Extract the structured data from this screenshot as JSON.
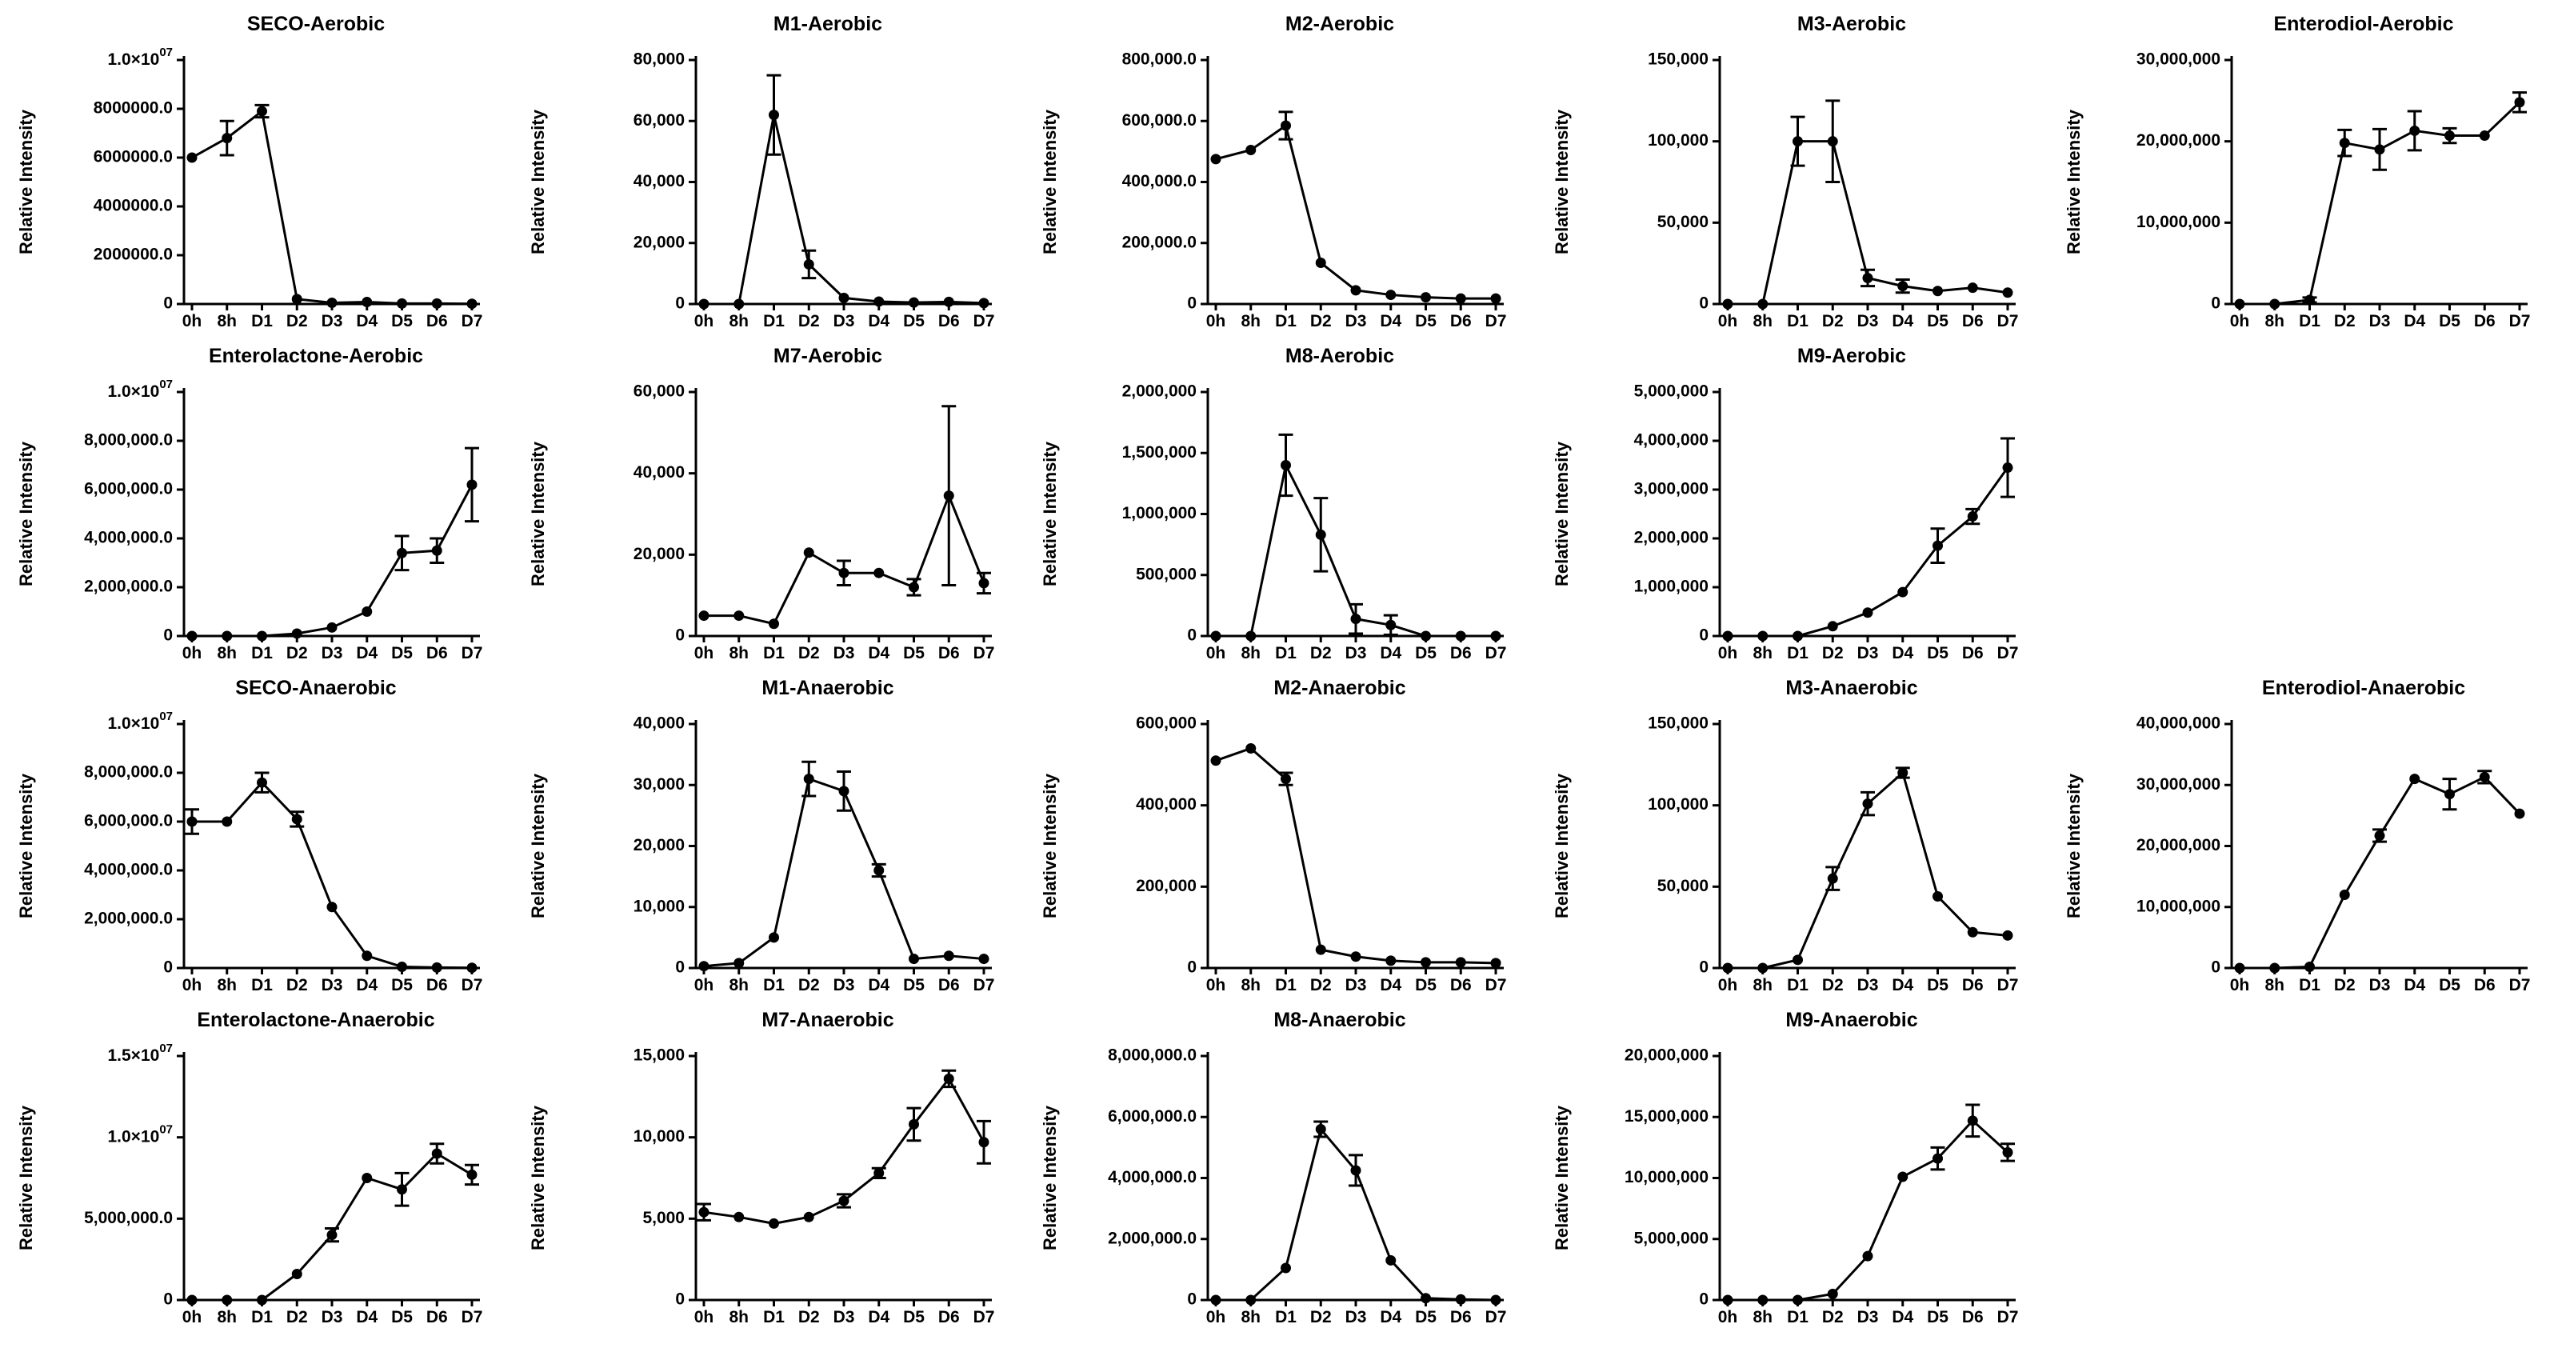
{
  "shared": {
    "categories": [
      "0h",
      "8h",
      "D1",
      "D2",
      "D3",
      "D4",
      "D5",
      "D6",
      "D7"
    ],
    "ylabel": "Relative Intensity"
  },
  "chart_data": [
    {
      "type": "line",
      "title": "SECO-Aerobic",
      "ylim": [
        0,
        10000000
      ],
      "yticks": [
        "0",
        "2000000.0",
        "4000000.0",
        "6000000.0",
        "8000000.0",
        "1.0×10^07"
      ],
      "values": [
        6000000,
        6800000,
        7900000,
        200000,
        50000,
        80000,
        20000,
        20000,
        10000
      ],
      "errors": [
        0,
        700000,
        250000,
        0,
        0,
        0,
        0,
        0,
        0
      ]
    },
    {
      "type": "line",
      "title": "M1-Aerobic",
      "ylim": [
        0,
        80000
      ],
      "yticks": [
        "0",
        "20,000",
        "40,000",
        "60,000",
        "80,000"
      ],
      "values": [
        0,
        0,
        62000,
        13000,
        2000,
        800,
        500,
        700,
        300
      ],
      "errors": [
        0,
        0,
        13000,
        4500,
        0,
        0,
        0,
        0,
        0
      ]
    },
    {
      "type": "line",
      "title": "M2-Aerobic",
      "ylim": [
        0,
        800000
      ],
      "yticks": [
        "0",
        "200,000.0",
        "400,000.0",
        "600,000.0",
        "800,000.0"
      ],
      "values": [
        475000,
        505000,
        585000,
        135000,
        45000,
        30000,
        22000,
        18000,
        18000
      ],
      "errors": [
        0,
        0,
        45000,
        0,
        0,
        0,
        0,
        0,
        0
      ]
    },
    {
      "type": "line",
      "title": "M3-Aerobic",
      "ylim": [
        0,
        150000
      ],
      "yticks": [
        "0",
        "50,000",
        "100,000",
        "150,000"
      ],
      "values": [
        0,
        0,
        100000,
        100000,
        16000,
        11000,
        8000,
        10000,
        7000
      ],
      "errors": [
        0,
        0,
        15000,
        25000,
        5000,
        4000,
        0,
        0,
        0
      ]
    },
    {
      "type": "line",
      "title": "Enterodiol-Aerobic",
      "ylim": [
        0,
        30000000
      ],
      "yticks": [
        "0",
        "10,000,000",
        "20,000,000",
        "30,000,000"
      ],
      "values": [
        0,
        0,
        500000,
        19800000,
        19000000,
        21300000,
        20700000,
        20700000,
        24800000
      ],
      "errors": [
        0,
        0,
        300000,
        1600000,
        2500000,
        2400000,
        900000,
        0,
        1200000
      ]
    },
    {
      "type": "line",
      "title": "Enterolactone-Aerobic",
      "ylim": [
        0,
        10000000
      ],
      "yticks": [
        "0",
        "2,000,000.0",
        "4,000,000.0",
        "6,000,000.0",
        "8,000,000.0",
        "1.0×10^07"
      ],
      "values": [
        0,
        0,
        0,
        100000,
        350000,
        1000000,
        3400000,
        3500000,
        6200000
      ],
      "errors": [
        0,
        0,
        0,
        0,
        0,
        0,
        700000,
        500000,
        1500000
      ]
    },
    {
      "type": "line",
      "title": "M7-Aerobic",
      "ylim": [
        0,
        60000
      ],
      "yticks": [
        "0",
        "20,000",
        "40,000",
        "60,000"
      ],
      "values": [
        5000,
        5000,
        3000,
        20500,
        15500,
        15500,
        12000,
        34500,
        13000
      ],
      "errors": [
        0,
        0,
        0,
        0,
        3000,
        0,
        2000,
        22000,
        2500
      ]
    },
    {
      "type": "line",
      "title": "M8-Aerobic",
      "ylim": [
        0,
        2000000
      ],
      "yticks": [
        "0",
        "500,000",
        "1,000,000",
        "1,500,000",
        "2,000,000"
      ],
      "values": [
        0,
        0,
        1400000,
        830000,
        140000,
        90000,
        0,
        0,
        0
      ],
      "errors": [
        0,
        0,
        250000,
        300000,
        120000,
        80000,
        0,
        0,
        0
      ]
    },
    {
      "type": "line",
      "title": "M9-Aerobic",
      "ylim": [
        0,
        5000000
      ],
      "yticks": [
        "0",
        "1,000,000",
        "2,000,000",
        "3,000,000",
        "4,000,000",
        "5,000,000"
      ],
      "values": [
        0,
        0,
        0,
        200000,
        480000,
        900000,
        1850000,
        2450000,
        3450000
      ],
      "errors": [
        0,
        0,
        0,
        0,
        0,
        0,
        350000,
        150000,
        600000
      ]
    },
    {
      "type": "line",
      "title": "SECO-Anaerobic",
      "ylim": [
        0,
        10000000
      ],
      "yticks": [
        "0",
        "2,000,000.0",
        "4,000,000.0",
        "6,000,000.0",
        "8,000,000.0",
        "1.0×10^07"
      ],
      "values": [
        6000000,
        6000000,
        7600000,
        6100000,
        2500000,
        500000,
        50000,
        20000,
        10000
      ],
      "errors": [
        500000,
        0,
        400000,
        300000,
        0,
        0,
        0,
        0,
        0
      ]
    },
    {
      "type": "line",
      "title": "M1-Anaerobic",
      "ylim": [
        0,
        40000
      ],
      "yticks": [
        "0",
        "10,000",
        "20,000",
        "30,000",
        "40,000"
      ],
      "values": [
        300,
        800,
        5000,
        31000,
        29000,
        16000,
        1500,
        2000,
        1500
      ],
      "errors": [
        0,
        0,
        0,
        2800,
        3200,
        1000,
        0,
        0,
        0
      ]
    },
    {
      "type": "line",
      "title": "M2-Anaerobic",
      "ylim": [
        0,
        600000
      ],
      "yticks": [
        "0",
        "200,000",
        "400,000",
        "600,000"
      ],
      "values": [
        510000,
        540000,
        465000,
        45000,
        28000,
        18000,
        14000,
        14000,
        12000
      ],
      "errors": [
        0,
        0,
        15000,
        0,
        0,
        0,
        0,
        0,
        0
      ]
    },
    {
      "type": "line",
      "title": "M3-Anaerobic",
      "ylim": [
        0,
        150000
      ],
      "yticks": [
        "0",
        "50,000",
        "100,000",
        "150,000"
      ],
      "values": [
        0,
        0,
        5000,
        55000,
        101000,
        120000,
        44000,
        22000,
        20000
      ],
      "errors": [
        0,
        0,
        0,
        7000,
        7000,
        3000,
        0,
        0,
        0
      ]
    },
    {
      "type": "line",
      "title": "Enterodiol-Anaerobic",
      "ylim": [
        0,
        40000000
      ],
      "yticks": [
        "0",
        "10,000,000",
        "20,000,000",
        "30,000,000",
        "40,000,000"
      ],
      "values": [
        0,
        0,
        200000,
        12000000,
        21700000,
        31000000,
        28500000,
        31300000,
        25300000
      ],
      "errors": [
        0,
        0,
        0,
        0,
        1000000,
        0,
        2500000,
        1000000,
        0
      ]
    },
    {
      "type": "line",
      "title": "Enterolactone-Anaerobic",
      "ylim": [
        0,
        15000000
      ],
      "yticks": [
        "0",
        "5,000,000.0",
        "1.0×10^07",
        "1.5×10^07"
      ],
      "values": [
        0,
        0,
        0,
        1600000,
        4000000,
        7500000,
        6800000,
        9000000,
        7700000
      ],
      "errors": [
        0,
        0,
        0,
        0,
        400000,
        0,
        1000000,
        600000,
        600000
      ]
    },
    {
      "type": "line",
      "title": "M7-Anaerobic",
      "ylim": [
        0,
        15000
      ],
      "yticks": [
        "0",
        "5,000",
        "10,000",
        "15,000"
      ],
      "values": [
        5400,
        5100,
        4700,
        5100,
        6100,
        7800,
        10800,
        13600,
        9700
      ],
      "errors": [
        500,
        0,
        0,
        0,
        400,
        300,
        1000,
        500,
        1300
      ]
    },
    {
      "type": "line",
      "title": "M8-Anaerobic",
      "ylim": [
        0,
        8000000
      ],
      "yticks": [
        "0",
        "2,000,000.0",
        "4,000,000.0",
        "6,000,000.0",
        "8,000,000.0"
      ],
      "values": [
        0,
        0,
        1050000,
        5600000,
        4250000,
        1300000,
        60000,
        20000,
        0
      ],
      "errors": [
        0,
        0,
        0,
        250000,
        500000,
        0,
        0,
        0,
        0
      ]
    },
    {
      "type": "line",
      "title": "M9-Anaerobic",
      "ylim": [
        0,
        20000000
      ],
      "yticks": [
        "0",
        "5,000,000",
        "10,000,000",
        "15,000,000",
        "20,000,000"
      ],
      "values": [
        0,
        0,
        0,
        500000,
        3600000,
        10100000,
        11600000,
        14700000,
        12100000
      ],
      "errors": [
        0,
        0,
        0,
        0,
        0,
        0,
        900000,
        1300000,
        700000
      ]
    }
  ]
}
